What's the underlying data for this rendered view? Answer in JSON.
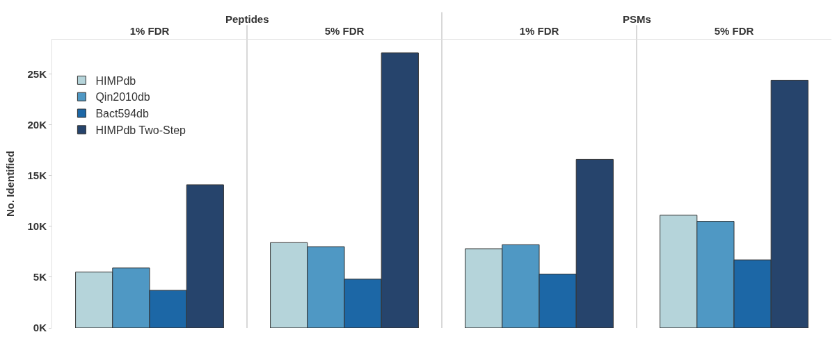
{
  "chart_data": {
    "type": "bar",
    "ylabel": "No. Identified",
    "categories": [
      "1% FDR",
      "5% FDR",
      "1% FDR",
      "5% FDR"
    ],
    "annotations": [
      "Peptides",
      "PSMs"
    ],
    "series": [
      {
        "name": "HIMPdb",
        "color": "#b5d4da",
        "values": [
          5500,
          8400,
          7800,
          11100
        ]
      },
      {
        "name": "Qin2010db",
        "color": "#4f98c4",
        "values": [
          5900,
          8000,
          8200,
          10500
        ]
      },
      {
        "name": "Bact594db",
        "color": "#1c67a6",
        "values": [
          3700,
          4800,
          5300,
          6700
        ]
      },
      {
        "name": "HIMPdb Two-Step",
        "color": "#26446c",
        "values": [
          14100,
          27100,
          16600,
          24400
        ]
      }
    ],
    "ylim": [
      0,
      28400
    ],
    "yticks": [
      {
        "value": 0,
        "label": "0K"
      },
      {
        "value": 5000,
        "label": "5K"
      },
      {
        "value": 10000,
        "label": "10K"
      },
      {
        "value": 15000,
        "label": "15K"
      },
      {
        "value": 20000,
        "label": "20K"
      },
      {
        "value": 25000,
        "label": "25K"
      }
    ],
    "legend": "top left",
    "grid": false
  }
}
